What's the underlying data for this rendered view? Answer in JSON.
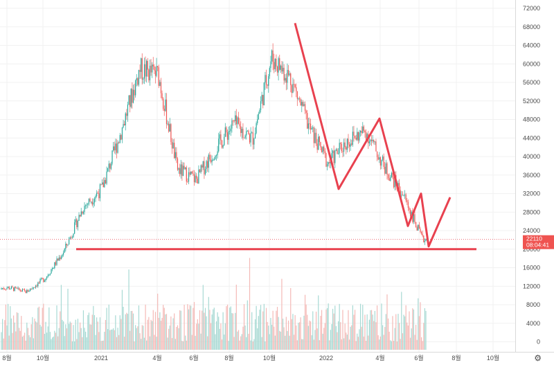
{
  "chart_data": {
    "type": "candlestick",
    "title": "",
    "xlabel": "",
    "ylabel": "",
    "ylim": [
      -2000,
      74000
    ],
    "y_ticks": [
      72000,
      68000,
      64000,
      60000,
      56000,
      52000,
      48000,
      44000,
      40000,
      36000,
      32000,
      28000,
      24000,
      20000,
      16000,
      12000,
      8000,
      4000,
      0
    ],
    "x_ticks": [
      "8월",
      "10월",
      "2021",
      "4월",
      "6월",
      "8월",
      "10월",
      "2022",
      "4월",
      "6월",
      "8월",
      "10월"
    ],
    "price_series": {
      "name": "",
      "months": [
        "2020-07",
        "2020-08",
        "2020-09",
        "2020-10",
        "2020-11",
        "2020-12",
        "2021-01",
        "2021-02",
        "2021-03",
        "2021-04",
        "2021-05",
        "2021-06",
        "2021-07",
        "2021-08",
        "2021-09",
        "2021-10",
        "2021-11",
        "2021-12",
        "2022-01",
        "2022-02",
        "2022-03",
        "2022-04",
        "2022-05",
        "2022-06"
      ],
      "close_usd": [
        11300,
        11700,
        10800,
        13800,
        19700,
        29000,
        33100,
        45200,
        58800,
        57700,
        37300,
        35000,
        41500,
        47100,
        43800,
        61300,
        57000,
        46300,
        38500,
        43200,
        45500,
        37700,
        31800,
        22110
      ]
    },
    "current_price": {
      "label": "22110",
      "countdown": "08:04:41"
    },
    "drawn_lines": {
      "horizontal_support": 20000,
      "zigzag": [
        68800,
        33000,
        48200,
        25000,
        32000,
        20600,
        31200
      ],
      "color": "#e8414f"
    },
    "volume_series_color_up": "#a7d9d3",
    "volume_series_color_down": "#f4b9b6"
  },
  "ui": {
    "settings_icon": "gear-icon",
    "settings_glyph": "⚙"
  }
}
